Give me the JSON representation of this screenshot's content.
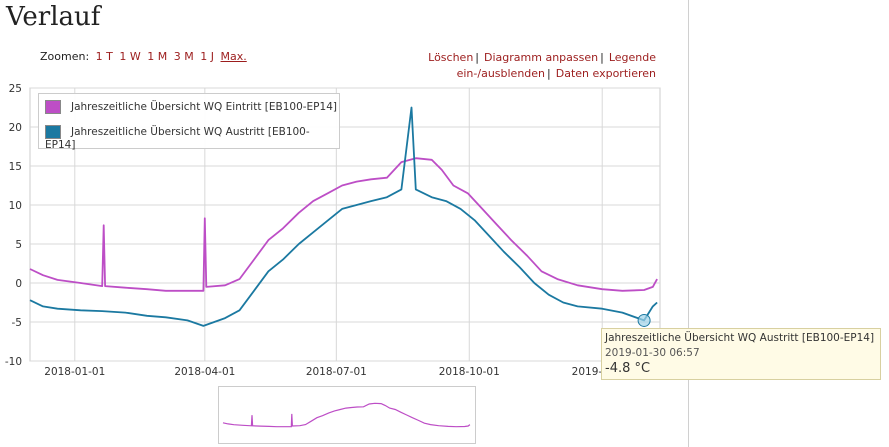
{
  "page": {
    "title": "Verlauf"
  },
  "zoom": {
    "label": "Zoomen:",
    "options": [
      "1 T",
      "1 W",
      "1 M",
      "3 M",
      "1 J",
      "Max."
    ]
  },
  "actions": {
    "delete": "Löschen",
    "adjust": "Diagramm anpassen",
    "toggle_legend": "Legende ein-/ausblenden",
    "export": "Daten exportieren"
  },
  "tooltip": {
    "series": "Jahreszeitliche Übersicht WQ Austritt [EB100-EP14]",
    "time": "2019-01-30 06:57",
    "value": "-4.8 °C"
  },
  "chart_data": {
    "type": "line",
    "title": "",
    "xlabel": "",
    "ylabel": "",
    "ylim": [
      -10,
      25
    ],
    "yticks": [
      -10,
      -5,
      0,
      5,
      10,
      15,
      20,
      25
    ],
    "xlim": [
      "2017-12-01",
      "2019-02-10"
    ],
    "xticks": [
      "2018-01-01",
      "2018-04-01",
      "2018-07-01",
      "2018-10-01",
      "2019-01-01"
    ],
    "grid": true,
    "legend_position": "top-left",
    "series": [
      {
        "name": "Jahreszeitliche Übersicht WQ Eintritt [EB100-EP14]",
        "color": "#bd4ec6",
        "points": [
          [
            "2017-12-01",
            1.8
          ],
          [
            "2017-12-10",
            1.0
          ],
          [
            "2017-12-20",
            0.4
          ],
          [
            "2018-01-05",
            0.0
          ],
          [
            "2018-01-20",
            -0.4
          ],
          [
            "2018-01-21",
            7.4
          ],
          [
            "2018-01-22",
            -0.4
          ],
          [
            "2018-02-05",
            -0.6
          ],
          [
            "2018-02-20",
            -0.8
          ],
          [
            "2018-03-05",
            -1.0
          ],
          [
            "2018-03-20",
            -1.0
          ],
          [
            "2018-03-31",
            -1.0
          ],
          [
            "2018-04-01",
            8.3
          ],
          [
            "2018-04-02",
            -0.5
          ],
          [
            "2018-04-15",
            -0.3
          ],
          [
            "2018-04-25",
            0.5
          ],
          [
            "2018-05-05",
            3.0
          ],
          [
            "2018-05-15",
            5.5
          ],
          [
            "2018-05-25",
            7.0
          ],
          [
            "2018-06-05",
            9.0
          ],
          [
            "2018-06-15",
            10.5
          ],
          [
            "2018-06-25",
            11.5
          ],
          [
            "2018-07-05",
            12.5
          ],
          [
            "2018-07-15",
            13.0
          ],
          [
            "2018-07-25",
            13.3
          ],
          [
            "2018-08-05",
            13.5
          ],
          [
            "2018-08-15",
            15.5
          ],
          [
            "2018-08-25",
            16.0
          ],
          [
            "2018-09-05",
            15.8
          ],
          [
            "2018-09-12",
            14.5
          ],
          [
            "2018-09-20",
            12.5
          ],
          [
            "2018-09-30",
            11.5
          ],
          [
            "2018-10-10",
            9.5
          ],
          [
            "2018-10-20",
            7.5
          ],
          [
            "2018-10-30",
            5.5
          ],
          [
            "2018-11-10",
            3.5
          ],
          [
            "2018-11-20",
            1.5
          ],
          [
            "2018-12-01",
            0.5
          ],
          [
            "2018-12-15",
            -0.3
          ],
          [
            "2019-01-01",
            -0.8
          ],
          [
            "2019-01-15",
            -1.0
          ],
          [
            "2019-01-30",
            -0.9
          ],
          [
            "2019-02-05",
            -0.5
          ],
          [
            "2019-02-08",
            0.5
          ]
        ]
      },
      {
        "name": "Jahreszeitliche Übersicht WQ Austritt [EB100-EP14]",
        "color": "#1b79a1",
        "points": [
          [
            "2017-12-01",
            -2.2
          ],
          [
            "2017-12-10",
            -3.0
          ],
          [
            "2017-12-20",
            -3.3
          ],
          [
            "2018-01-05",
            -3.5
          ],
          [
            "2018-01-20",
            -3.6
          ],
          [
            "2018-02-05",
            -3.8
          ],
          [
            "2018-02-20",
            -4.2
          ],
          [
            "2018-03-05",
            -4.4
          ],
          [
            "2018-03-20",
            -4.8
          ],
          [
            "2018-03-31",
            -5.5
          ],
          [
            "2018-04-15",
            -4.5
          ],
          [
            "2018-04-25",
            -3.5
          ],
          [
            "2018-05-05",
            -1.0
          ],
          [
            "2018-05-15",
            1.5
          ],
          [
            "2018-05-25",
            3.0
          ],
          [
            "2018-06-05",
            5.0
          ],
          [
            "2018-06-15",
            6.5
          ],
          [
            "2018-06-25",
            8.0
          ],
          [
            "2018-07-05",
            9.5
          ],
          [
            "2018-07-15",
            10.0
          ],
          [
            "2018-07-25",
            10.5
          ],
          [
            "2018-08-05",
            11.0
          ],
          [
            "2018-08-15",
            12.0
          ],
          [
            "2018-08-22",
            22.5
          ],
          [
            "2018-08-25",
            12.0
          ],
          [
            "2018-09-05",
            11.0
          ],
          [
            "2018-09-15",
            10.5
          ],
          [
            "2018-09-25",
            9.5
          ],
          [
            "2018-10-05",
            8.0
          ],
          [
            "2018-10-15",
            6.0
          ],
          [
            "2018-10-25",
            4.0
          ],
          [
            "2018-11-05",
            2.0
          ],
          [
            "2018-11-15",
            0.0
          ],
          [
            "2018-11-25",
            -1.5
          ],
          [
            "2018-12-05",
            -2.5
          ],
          [
            "2018-12-15",
            -3.0
          ],
          [
            "2019-01-01",
            -3.3
          ],
          [
            "2019-01-15",
            -3.8
          ],
          [
            "2019-01-30",
            -4.8
          ],
          [
            "2019-02-05",
            -3.0
          ],
          [
            "2019-02-08",
            -2.5
          ]
        ]
      }
    ]
  }
}
